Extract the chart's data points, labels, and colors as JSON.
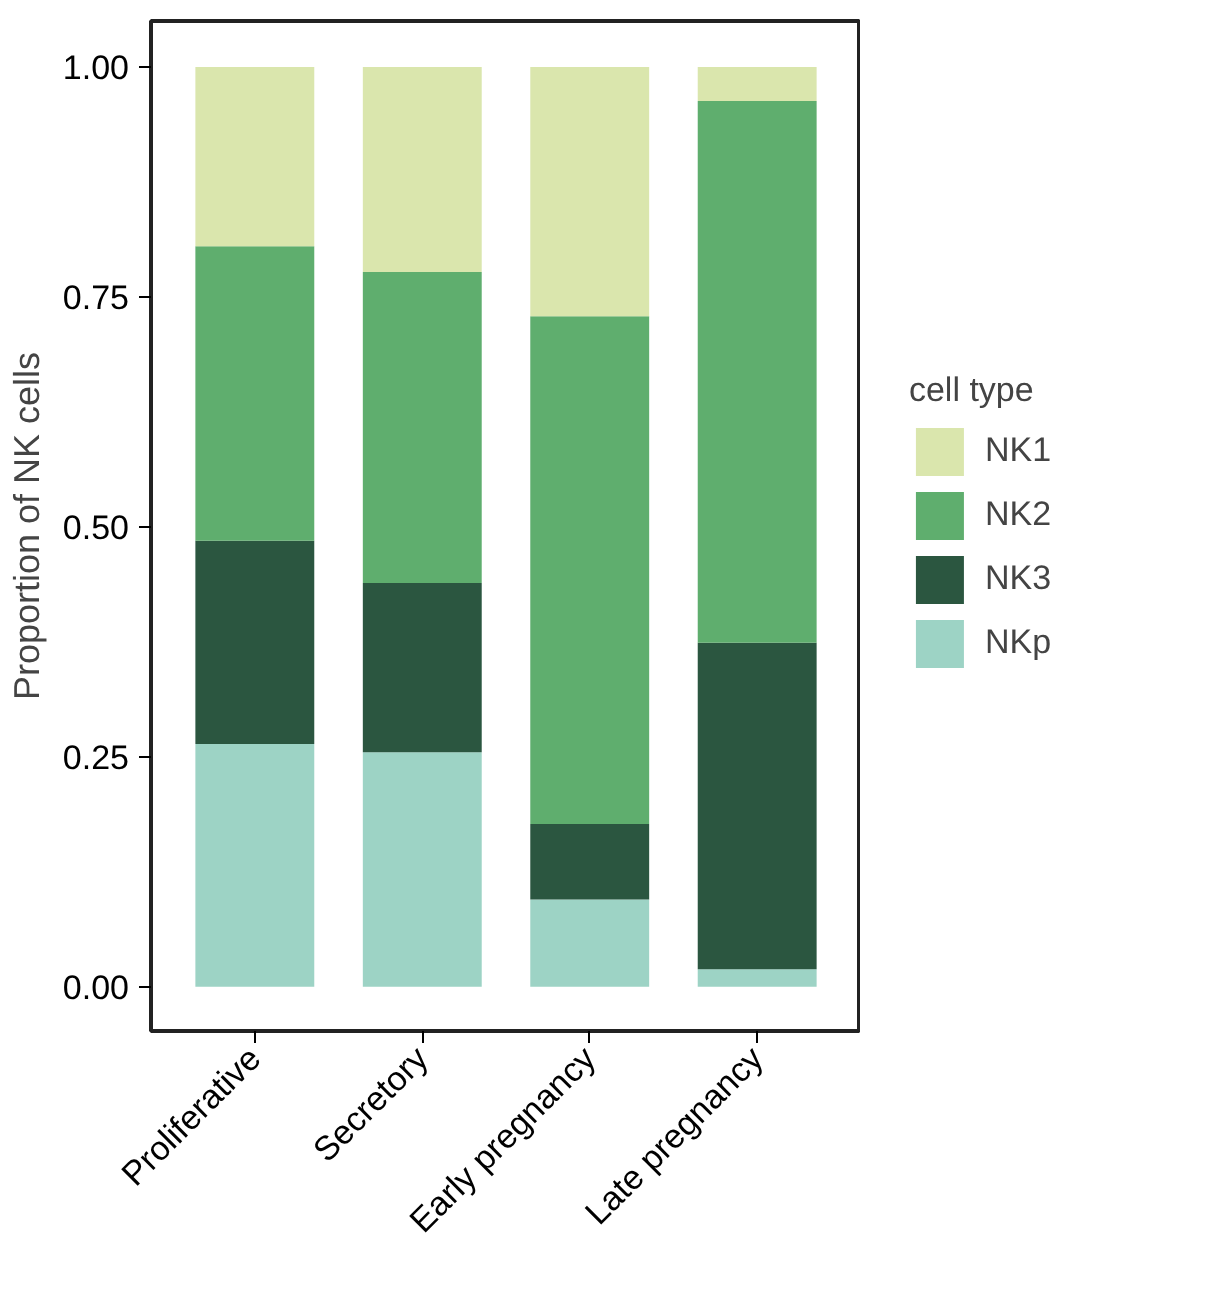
{
  "chart_data": {
    "type": "bar",
    "stacked": true,
    "ylabel": "Proportion of NK cells",
    "legend_title": "cell type",
    "legend": "right",
    "grid": false,
    "categories": [
      "Proliferative",
      "Secretory",
      "Early pregnancy",
      "Late pregnancy"
    ],
    "ylim": [
      -0.048,
      1.05
    ],
    "yticks": [
      {
        "value": 0,
        "label": "0.00"
      },
      {
        "value": 0.25,
        "label": "0.25"
      },
      {
        "value": 0.5,
        "label": "0.50"
      },
      {
        "value": 0.75,
        "label": "0.75"
      },
      {
        "value": 1,
        "label": "1.00"
      }
    ],
    "series": [
      {
        "name": "NKp",
        "color": "#9dd3c5",
        "values": [
          0.264,
          0.255,
          0.095,
          0.019
        ]
      },
      {
        "name": "NK3",
        "color": "#2b5640",
        "values": [
          0.221,
          0.184,
          0.082,
          0.355
        ]
      },
      {
        "name": "NK2",
        "color": "#5fae6e",
        "values": [
          0.32,
          0.338,
          0.552,
          0.589
        ]
      },
      {
        "name": "NK1",
        "color": "#dae6ad",
        "values": [
          0.195,
          0.223,
          0.271,
          0.037
        ]
      }
    ]
  }
}
